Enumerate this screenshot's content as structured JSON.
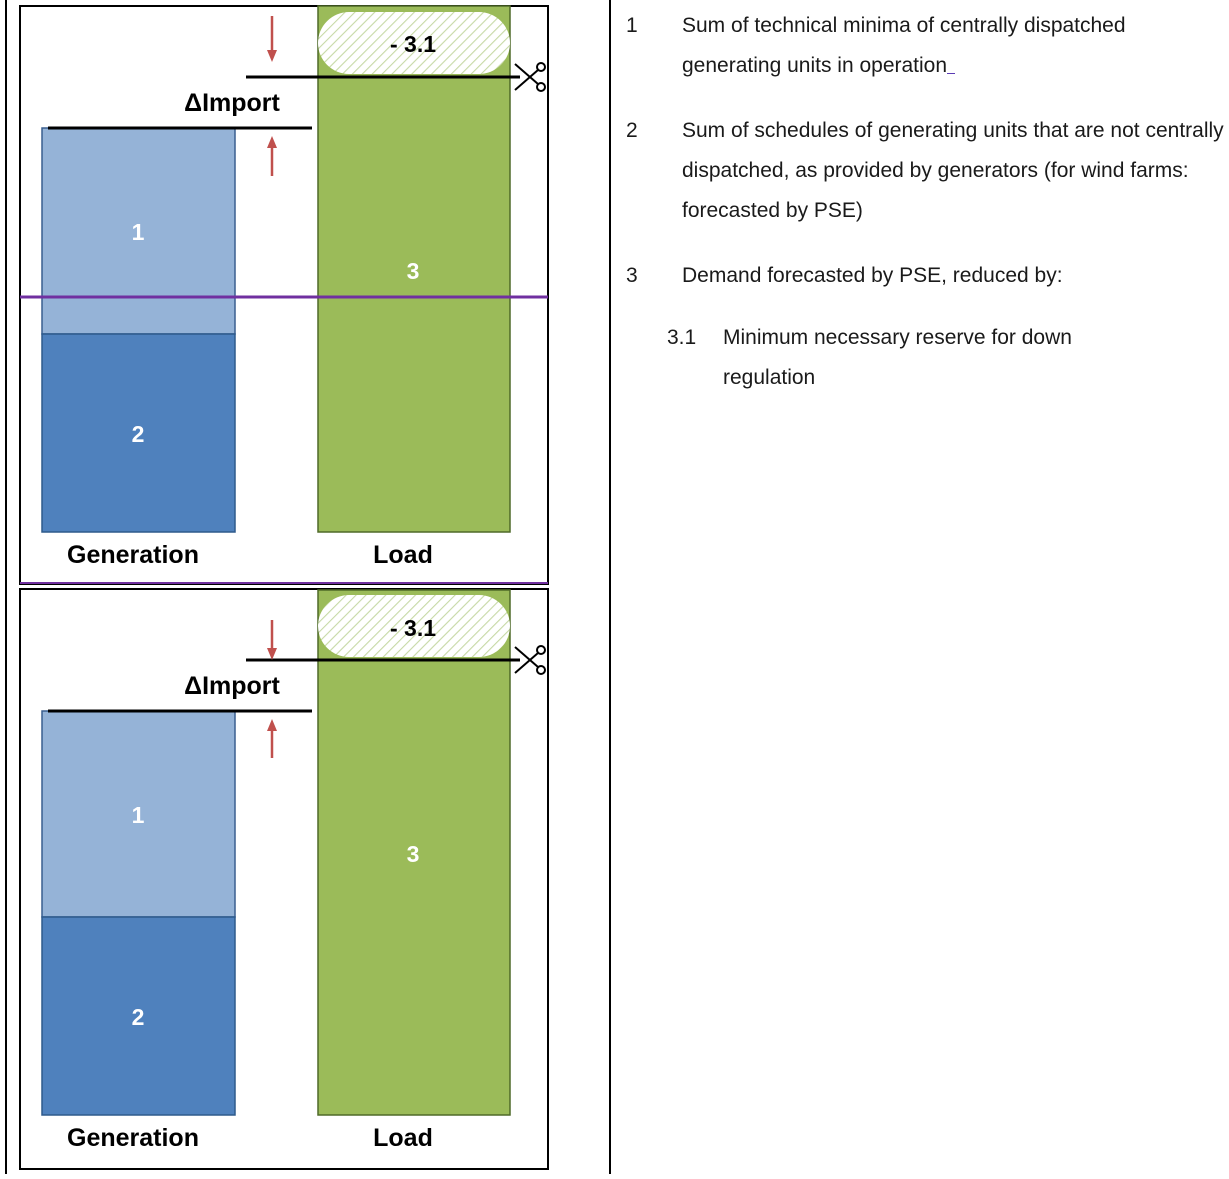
{
  "figures": [
    {
      "id": "top",
      "reduction_label": "- 3.1",
      "delta_label": "ΔImport",
      "gen_upper_label": "1",
      "gen_lower_label": "2",
      "load_label": "3",
      "x_left_label": "Generation",
      "x_right_label": "Load"
    },
    {
      "id": "bottom",
      "reduction_label": "- 3.1",
      "delta_label": "ΔImport",
      "gen_upper_label": "1",
      "gen_lower_label": "2",
      "load_label": "3",
      "x_left_label": "Generation",
      "x_right_label": "Load"
    }
  ],
  "colors": {
    "gen_upper": "#95b3d7",
    "gen_lower": "#4f81bd",
    "load": "#9bbb59",
    "arrow": "#c0504d",
    "purple_line": "#7030a0"
  },
  "legend": {
    "items": [
      {
        "num": "1",
        "text": "Sum of technical minima of centrally dispatched generating units in operation"
      },
      {
        "num": "2",
        "text": "Sum of schedules of generating units that are not centrally dispatched, as provided by generators (for wind farms: forecasted by PSE)"
      },
      {
        "num": "3",
        "text": "Demand forecasted by PSE, reduced by:"
      }
    ],
    "sub_items": [
      {
        "num": "3.1",
        "text": "Minimum necessary reserve for down regulation"
      }
    ]
  }
}
